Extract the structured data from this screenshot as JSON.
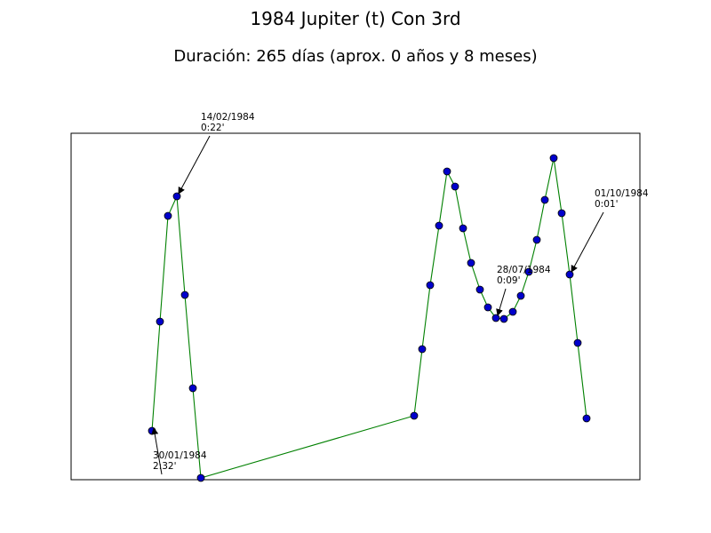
{
  "chart_data": {
    "type": "line",
    "title": "1984 Jupiter (t) Con 3rd",
    "subtitle": "Duración: 265 días (aprox. 0 años y 8 meses)",
    "xlabel": "",
    "ylabel": "",
    "grid": false,
    "axes_visible": false,
    "xlim": [
      0,
      640
    ],
    "ylim": [
      0,
      390
    ],
    "line_color": "#008000",
    "marker_color": "#0000cc",
    "series": [
      {
        "points": [
          [
            91,
            55
          ],
          [
            100,
            178
          ],
          [
            109,
            297
          ],
          [
            119,
            319
          ],
          [
            128,
            208
          ],
          [
            137,
            103
          ],
          [
            146,
            2
          ],
          [
            386,
            72
          ],
          [
            395,
            147
          ],
          [
            404,
            219
          ],
          [
            414,
            286
          ],
          [
            423,
            347
          ],
          [
            432,
            330
          ],
          [
            441,
            283
          ],
          [
            450,
            244
          ],
          [
            460,
            214
          ],
          [
            469,
            194
          ],
          [
            478,
            182
          ],
          [
            487,
            181
          ],
          [
            497,
            189
          ],
          [
            506,
            207
          ],
          [
            515,
            234
          ],
          [
            524,
            270
          ],
          [
            533,
            315
          ],
          [
            543,
            362
          ],
          [
            552,
            300
          ],
          [
            561,
            231
          ],
          [
            570,
            154
          ],
          [
            580,
            69
          ]
        ]
      }
    ],
    "annotations": [
      {
        "date": "30/01/1984",
        "value": "2:32'",
        "point_index": 0,
        "dx": 1,
        "dy": -42
      },
      {
        "date": "14/02/1984",
        "value": "0:22'",
        "point_index": 3,
        "dx": 27,
        "dy": 75
      },
      {
        "date": "28/07/1984",
        "value": "0:09'",
        "point_index": 17,
        "dx": 1,
        "dy": 40
      },
      {
        "date": "01/10/1984",
        "value": "0:01'",
        "point_index": 26,
        "dx": 28,
        "dy": 77
      }
    ]
  }
}
